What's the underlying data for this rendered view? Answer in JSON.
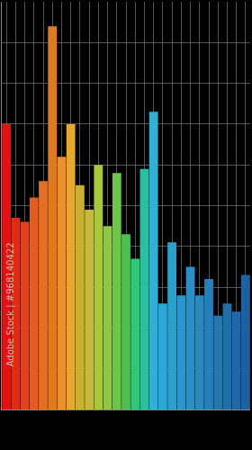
{
  "chart_data": {
    "type": "bar",
    "categories": [
      null,
      null,
      null,
      null,
      null,
      null,
      null,
      null,
      null,
      null,
      null,
      null,
      null,
      null,
      null,
      null,
      null,
      null,
      null,
      null,
      null,
      null,
      null,
      null,
      null,
      null,
      null
    ],
    "values": [
      70,
      47,
      46,
      52,
      56,
      94,
      62,
      70,
      55,
      49,
      60,
      45,
      58,
      43,
      37,
      59,
      73,
      26,
      41,
      28,
      35,
      28,
      32,
      23,
      26,
      24,
      33
    ],
    "colors": [
      "#e8100c",
      "#e52a10",
      "#e5401a",
      "#e85a1e",
      "#e46e22",
      "#e07a1c",
      "#e8902a",
      "#e8a830",
      "#c8b030",
      "#c8b83a",
      "#a8c83a",
      "#8cc840",
      "#6ac848",
      "#4cc050",
      "#30c878",
      "#28c0a0",
      "#30b0d8",
      "#2aa8d8",
      "#2aa0d0",
      "#2898d0",
      "#2890c8",
      "#2888c0",
      "#2480b8",
      "#2478b0",
      "#2070a8",
      "#2068a8",
      "#1e60a0"
    ],
    "ylim": [
      0,
      100
    ],
    "yticks": [
      0,
      10,
      20,
      30,
      40,
      50,
      60,
      70,
      80,
      90,
      100
    ],
    "grid": true,
    "tick_labels": false,
    "annotations": [
      "Adobe Stock | #968140422"
    ]
  }
}
